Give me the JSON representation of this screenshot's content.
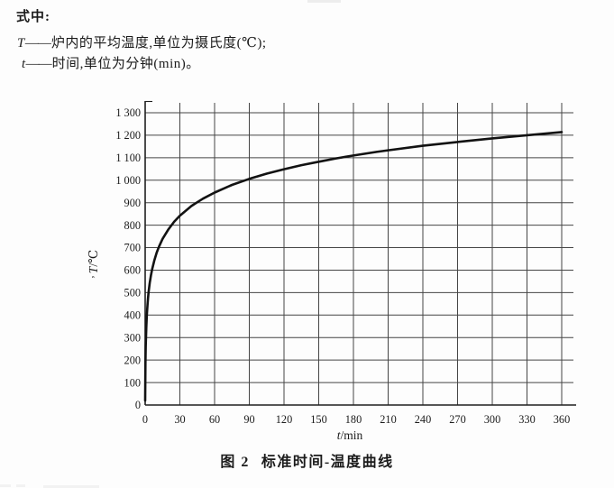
{
  "colors": {
    "background": "#fdfdfd",
    "ink": "#1b1b1b",
    "grid": "#454545",
    "axis": "#1f1f1f",
    "curve": "#121212"
  },
  "equation_legend": {
    "heading": "式中:",
    "items": [
      {
        "symbol": "T",
        "dash": "——",
        "description": "炉内的平均温度,单位为摄氏度(℃);"
      },
      {
        "symbol": "t",
        "dash": "——",
        "description": "时间,单位为分钟(min)。"
      }
    ]
  },
  "figure": {
    "caption_prefix": "图 2",
    "caption_title": "标准时间-温度曲线",
    "stray_mark": ","
  },
  "chart_data": {
    "type": "line",
    "title": "标准时间-温度曲线",
    "xlabel": "t/min",
    "ylabel": "T/℃",
    "xlabel_symbol": "t",
    "xlabel_rest": "/min",
    "ylabel_symbol": "T",
    "ylabel_rest": "/℃",
    "xlim": [
      0,
      370
    ],
    "ylim": [
      0,
      1340
    ],
    "grid": true,
    "legend_position": "none",
    "x_ticks": [
      0,
      30,
      60,
      90,
      120,
      150,
      180,
      210,
      240,
      270,
      300,
      330,
      360
    ],
    "y_ticks": [
      0,
      100,
      200,
      300,
      400,
      500,
      600,
      700,
      800,
      900,
      1000,
      1100,
      1200,
      1300
    ],
    "y_tick_labels": [
      "0",
      "100",
      "200",
      "300",
      "400",
      "500",
      "600",
      "700",
      "800",
      "900",
      "1 000",
      "1 100",
      "1 200",
      "1 300"
    ],
    "series": [
      {
        "name": "标准时间-温度曲线",
        "points": [
          [
            0,
            20
          ],
          [
            0.25,
            185
          ],
          [
            0.5,
            261
          ],
          [
            1,
            349
          ],
          [
            1.5,
            404
          ],
          [
            2,
            445
          ],
          [
            2.5,
            476
          ],
          [
            3,
            502
          ],
          [
            4,
            544
          ],
          [
            5,
            576
          ],
          [
            6,
            603
          ],
          [
            8,
            645
          ],
          [
            10,
            678
          ],
          [
            12,
            705
          ],
          [
            15,
            739
          ],
          [
            20,
            781
          ],
          [
            25,
            815
          ],
          [
            30,
            842
          ],
          [
            40,
            885
          ],
          [
            45,
            902
          ],
          [
            50,
            918
          ],
          [
            60,
            945
          ],
          [
            75,
            979
          ],
          [
            90,
            1006
          ],
          [
            105,
            1029
          ],
          [
            120,
            1049
          ],
          [
            135,
            1067
          ],
          [
            150,
            1082
          ],
          [
            165,
            1097
          ],
          [
            180,
            1110
          ],
          [
            200,
            1126
          ],
          [
            210,
            1133
          ],
          [
            240,
            1153
          ],
          [
            270,
            1170
          ],
          [
            300,
            1186
          ],
          [
            330,
            1200
          ],
          [
            360,
            1214
          ]
        ]
      }
    ]
  }
}
